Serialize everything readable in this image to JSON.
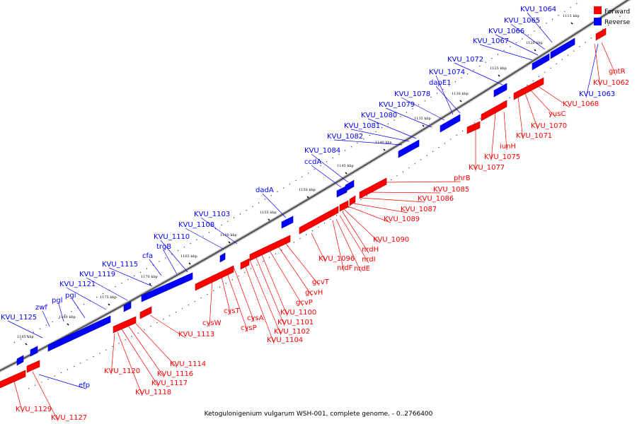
{
  "caption": "Ketogulonigenium vulgarum WSH-001, complete genome. - 0..2766400",
  "legend": [
    {
      "label": "Forward",
      "color": "#ff0000"
    },
    {
      "label": "Reverse",
      "color": "#0000ff"
    }
  ],
  "colors": {
    "forward": "#ff0000",
    "reverse": "#0000ff",
    "backbone": "#555555"
  },
  "ticks": [
    "1115 kbp",
    "1120 kbp",
    "1125 kbp",
    "1130 kbp",
    "1135 kbp",
    "1140 kbp",
    "1145 kbp",
    "1150 kbp",
    "1155 kbp",
    "1160 kbp",
    "1165 kbp",
    "1170 kbp",
    "1175 kbp",
    "1180 kbp",
    "1185 kbp"
  ],
  "reverse_genes": [
    "KVU_1064",
    "KVU_1065",
    "KVU_1066",
    "KVU_1067",
    "KVU_1072",
    "dapE1",
    "KVU_1074",
    "KVU_1078",
    "KVU_1079",
    "KVU_1080",
    "KVU_1081",
    "KVU_1082",
    "KVU_1084",
    "ccdA",
    "dadA",
    "KVU_1103",
    "KVU_1108",
    "KVU_1110",
    "trgB",
    "cfa",
    "KVU_1115",
    "KVU_1119",
    "KVU_1121",
    "pgi",
    "pgl",
    "zwf",
    "KVU_1125",
    "efp",
    "KVU_1063"
  ],
  "forward_genes": [
    "gntR",
    "KVU_1062",
    "KVU_1068",
    "yusC",
    "KVU_1070",
    "KVU_1071",
    "iunH",
    "KVU_1075",
    "KVU_1077",
    "phrB",
    "KVU_1085",
    "KVU_1086",
    "KVU_1087",
    "KVU_1089",
    "KVU_1090",
    "nrdH",
    "nrdI",
    "nrdE",
    "nrdF",
    "KVU_1096",
    "gcvT",
    "gcvH",
    "gcvP",
    "KVU_1100",
    "KVU_1101",
    "KVU_1102",
    "KVU_1104",
    "cysA",
    "cysP",
    "cysT",
    "cysW",
    "KVU_1113",
    "KVU_1114",
    "KVU_1116",
    "KVU_1117",
    "KVU_1118",
    "KVU_1120",
    "KVU_1127",
    "KVU_1129"
  ]
}
